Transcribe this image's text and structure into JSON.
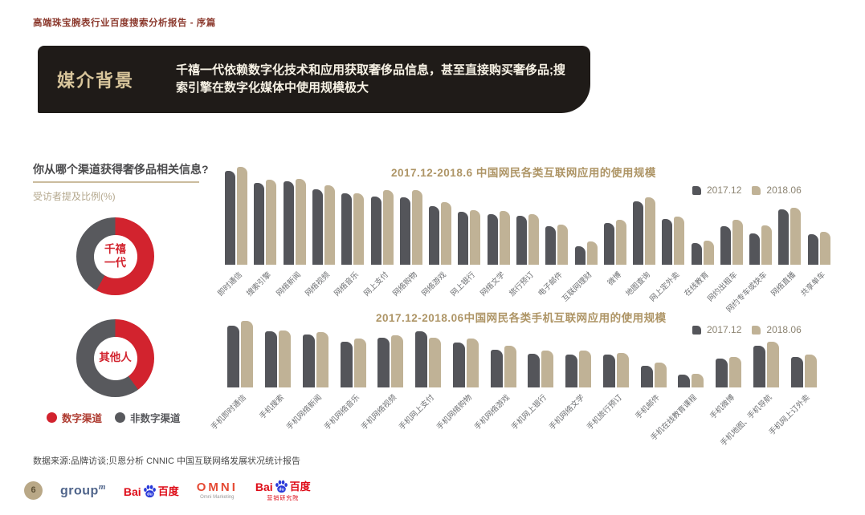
{
  "page": {
    "header": "高端珠宝腕表行业百度搜索分析报告 - 序篇",
    "page_number": "6"
  },
  "banner": {
    "title": "媒介背景",
    "description": "千禧一代依赖数字化技术和应用获取奢侈品信息，甚至直接购买奢侈品;搜索引擎在数字化媒体中使用规模极大",
    "background_color": "#1F1B18",
    "title_color": "#D8C59B"
  },
  "survey": {
    "question": "你从哪个渠道获得奢侈品相关信息?",
    "subtitle": "受访者提及比例(%)",
    "legend": [
      {
        "label": "数字渠道",
        "color": "#D2232E"
      },
      {
        "label": "非数字渠道",
        "color": "#58595D"
      }
    ]
  },
  "chart_data": [
    {
      "type": "pie",
      "title": "千禧一代",
      "labels": [
        "数字渠道",
        "非数字渠道"
      ],
      "values": [
        58,
        42
      ],
      "colors": [
        "#D2232E",
        "#58595D"
      ],
      "values_note": "donut chart; slice sizes estimated from pixels, no data labels shown"
    },
    {
      "type": "pie",
      "title": "其他人",
      "labels": [
        "数字渠道",
        "非数字渠道"
      ],
      "values": [
        40,
        60
      ],
      "colors": [
        "#D2232E",
        "#58595D"
      ],
      "values_note": "donut chart; slice sizes estimated from pixels, no data labels shown"
    },
    {
      "type": "bar",
      "title": "2017.12-2018.6 中国网民各类互联网应用的使用规模",
      "categories": [
        "即时通信",
        "搜索引擎",
        "网络新闻",
        "网络视频",
        "网络音乐",
        "网上支付",
        "网络购物",
        "网络游戏",
        "网上银行",
        "网络文学",
        "旅行预订",
        "电子邮件",
        "互联网理财",
        "微博",
        "地图查询",
        "网上定外卖",
        "在线教育",
        "网约出租车",
        "网约专车或快车",
        "网络直播",
        "共享单车"
      ],
      "series": [
        {
          "name": "2017.12",
          "color": "#54555A",
          "values": [
            96,
            84,
            85,
            77,
            73,
            70,
            69,
            60,
            54,
            52,
            50,
            39,
            19,
            43,
            65,
            47,
            22,
            39,
            32,
            57,
            31
          ]
        },
        {
          "name": "2018.06",
          "color": "#C0B296",
          "values": [
            100,
            87,
            88,
            81,
            73,
            76,
            76,
            64,
            56,
            55,
            52,
            41,
            24,
            46,
            69,
            49,
            25,
            46,
            40,
            58,
            34
          ]
        }
      ],
      "ylim": [
        0,
        100
      ],
      "legend_position": "top-right",
      "grid": false,
      "values_note": "no y-axis shown; bar heights estimated as % of tallest bar"
    },
    {
      "type": "bar",
      "title": "2017.12-2018.06中国网民各类手机互联网应用的使用规模",
      "categories": [
        "手机即时通信",
        "手机搜索",
        "手机网络新闻",
        "手机网络音乐",
        "手机网络视频",
        "手机网上支付",
        "手机网络购物",
        "手机网络游戏",
        "手机网上银行",
        "手机网络文学",
        "手机旅行预订",
        "手机邮件",
        "手机在线教育课程",
        "手机微博",
        "手机地图、手机导航",
        "手机网上订外卖"
      ],
      "series": [
        {
          "name": "2017.12",
          "color": "#54555A",
          "values": [
            93,
            84,
            80,
            69,
            75,
            85,
            68,
            57,
            51,
            49,
            49,
            33,
            19,
            43,
            63,
            46
          ]
        },
        {
          "name": "2018.06",
          "color": "#C0B296",
          "values": [
            100,
            86,
            83,
            73,
            78,
            75,
            74,
            63,
            55,
            55,
            52,
            38,
            21,
            46,
            69,
            49
          ]
        }
      ],
      "ylim": [
        0,
        100
      ],
      "legend_position": "top-right",
      "grid": false,
      "values_note": "no y-axis shown; bar heights estimated as % of tallest bar"
    }
  ],
  "source_note": "数据来源:品牌访谈;贝恩分析 CNNIC 中国互联网络发展状况统计报告",
  "footer": {
    "logos": [
      {
        "name": "groupm",
        "text": "group",
        "sup": "m"
      },
      {
        "name": "baidu",
        "text_pre": "Bai",
        "paw_text": "du",
        "text_post": "百度"
      },
      {
        "name": "omni",
        "text": "OMNI",
        "caption": "Omni Marketing"
      },
      {
        "name": "baidu-research",
        "text_pre": "Bai",
        "paw_text": "du",
        "text_post": "百度",
        "caption": "营销研究院"
      }
    ]
  }
}
